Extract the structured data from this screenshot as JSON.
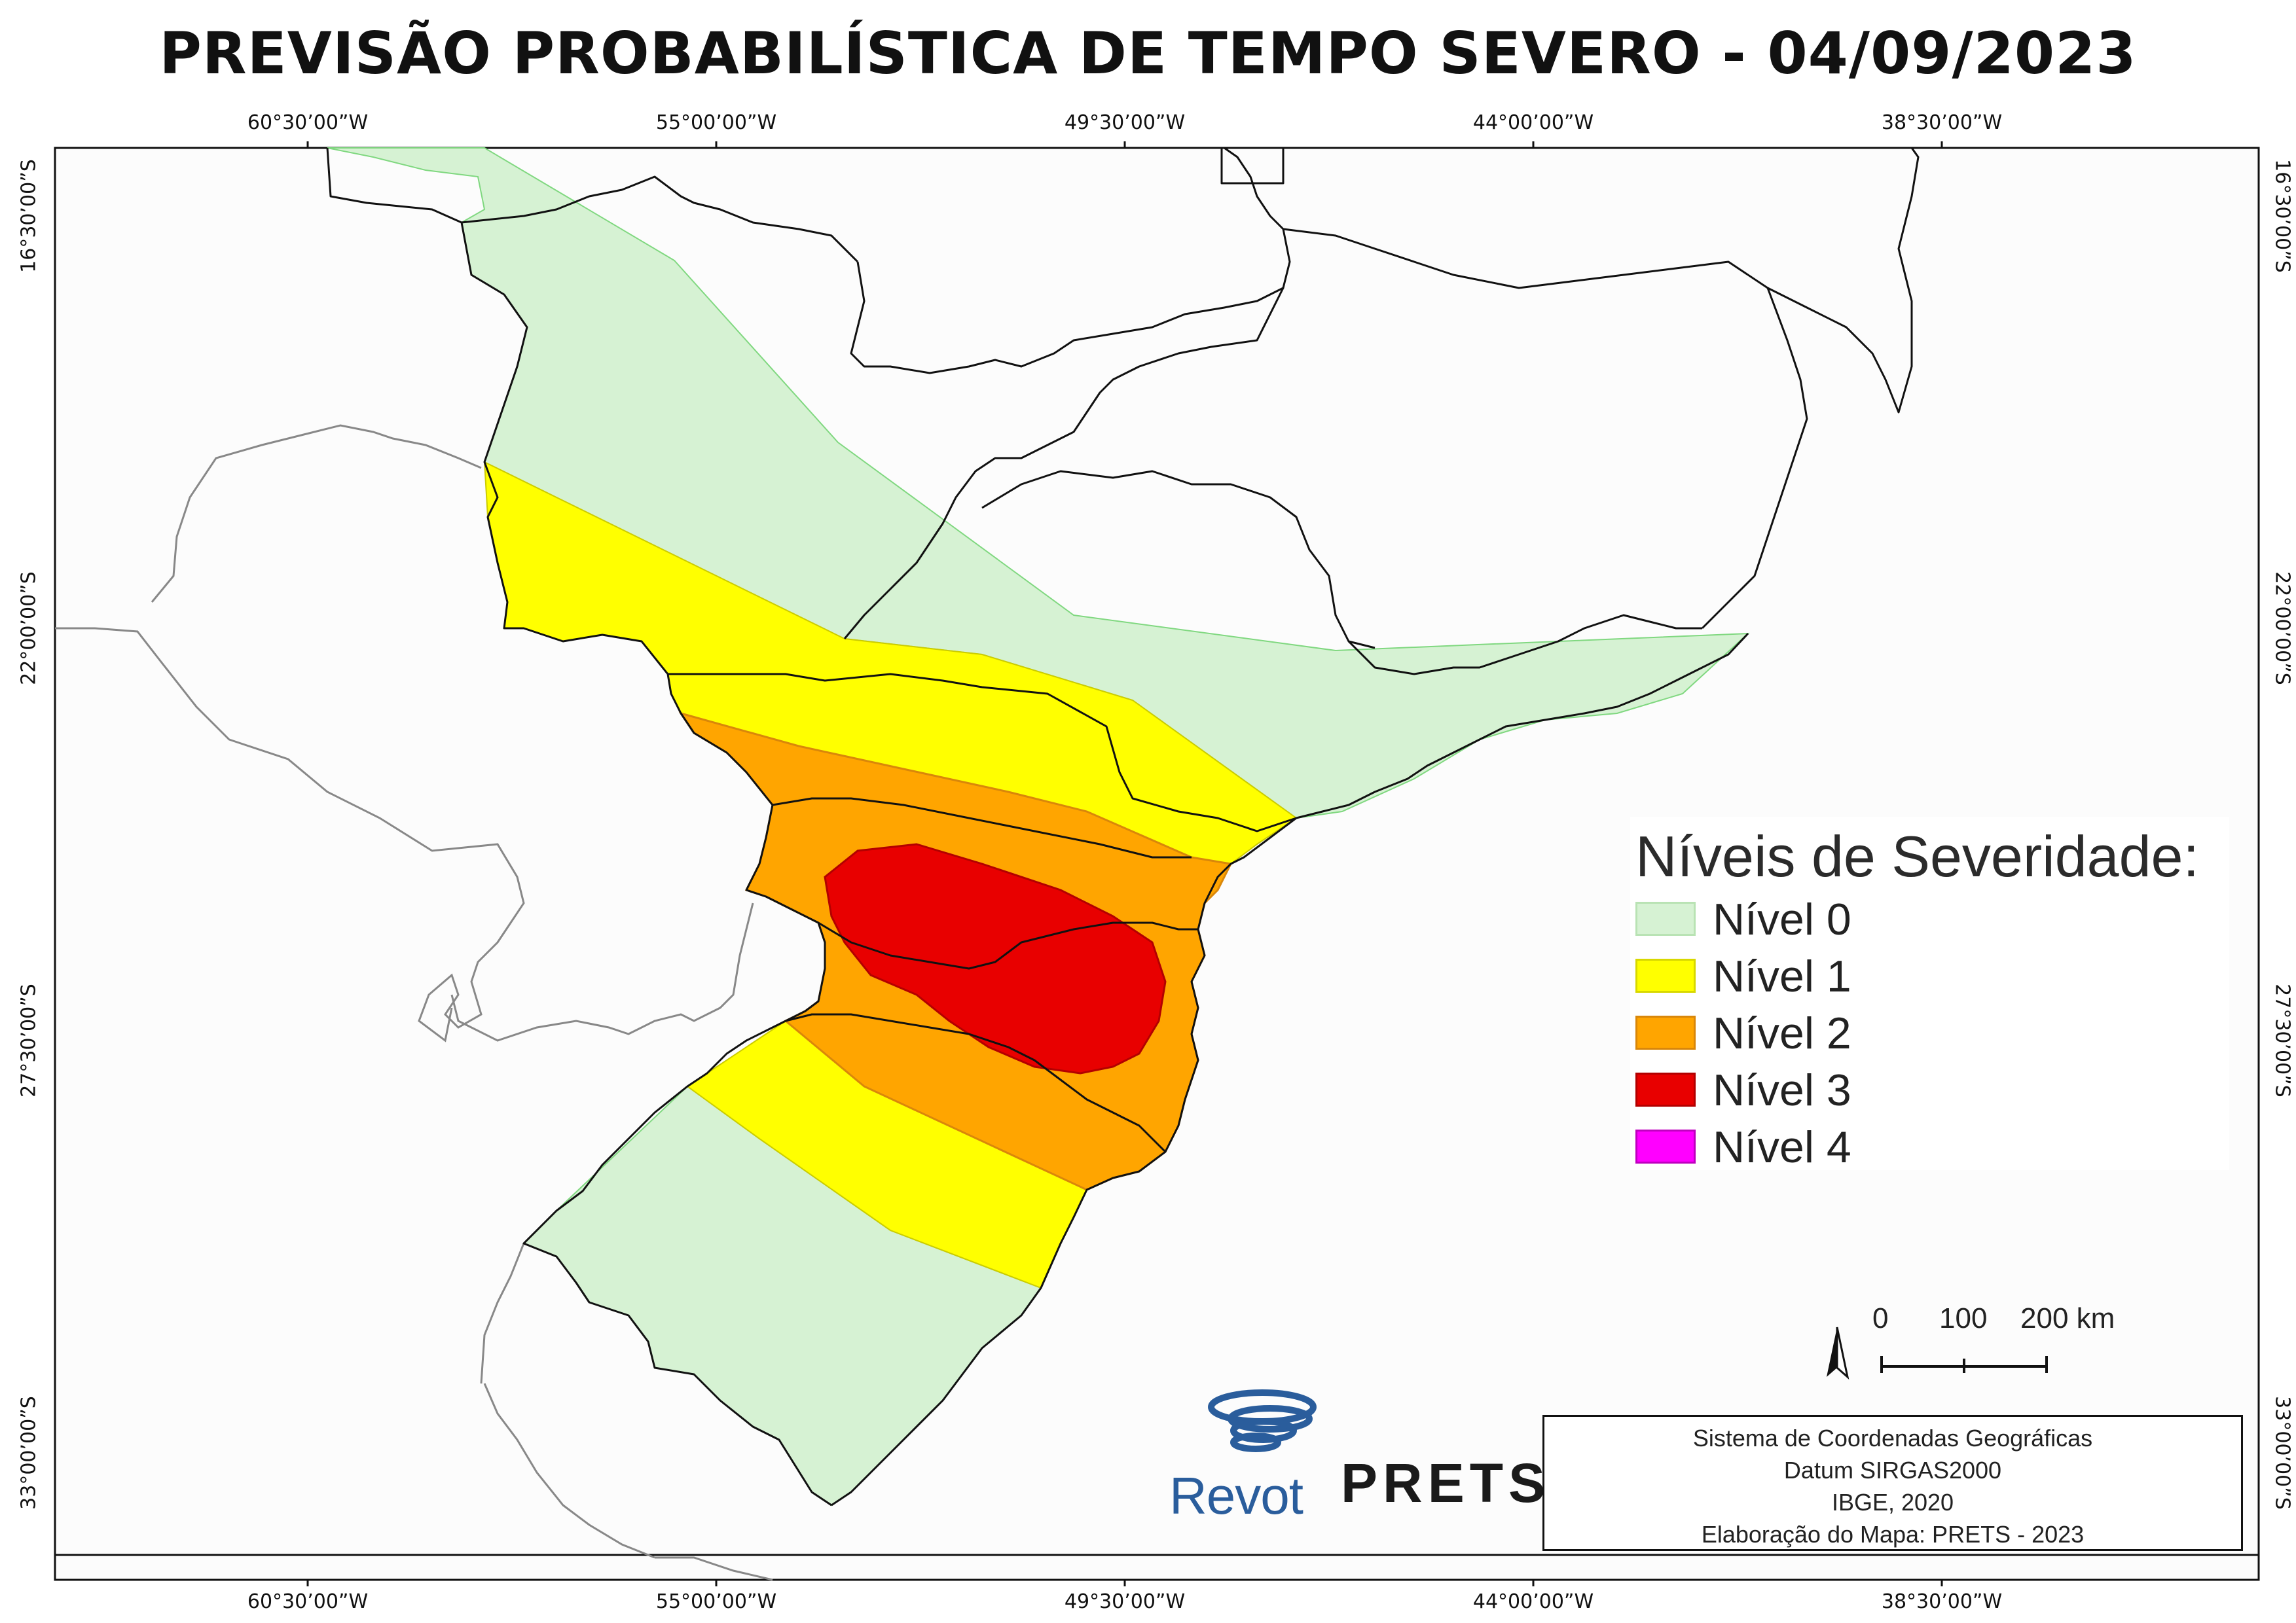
{
  "title": "PREVISÃO PROBABILÍSTICA DE TEMPO SEVERO - 04/09/2023",
  "longitude_labels": [
    "60°30’00”W",
    "55°00’00”W",
    "49°30’00”W",
    "44°00’00”W",
    "38°30’00”W"
  ],
  "latitude_labels": [
    "16°30’00”S",
    "22°00’00”S",
    "27°30’00”S",
    "33°00’00”S"
  ],
  "legend": {
    "title": "Níveis de Severidade:",
    "items": [
      {
        "label": "Nível 0",
        "fill": "#d6f2d3",
        "border": "#b9e3b4"
      },
      {
        "label": "Nível 1",
        "fill": "#ffff00",
        "border": "#d8d800"
      },
      {
        "label": "Nível 2",
        "fill": "#ffa500",
        "border": "#d9870a"
      },
      {
        "label": "Nível 3",
        "fill": "#e80000",
        "border": "#b30000"
      },
      {
        "label": "Nível 4",
        "fill": "#ff00ff",
        "border": "#c000c0"
      }
    ]
  },
  "scale_bar": {
    "labels": [
      "0",
      "100",
      "200 km"
    ]
  },
  "info_box": {
    "lines": [
      "Sistema de Coordenadas Geográficas",
      "Datum SIRGAS2000",
      "IBGE, 2020",
      "Elaboração do Mapa: PRETS - 2023"
    ]
  },
  "logos": {
    "revot": "Revot",
    "prets": "PRETS"
  },
  "colors": {
    "level0": "#d6f2d3",
    "level1": "#ffff00",
    "level2": "#ffa500",
    "level3": "#e80000",
    "level4": "#ff00ff",
    "map_background": "#fcfcfc",
    "land_border": "#111111",
    "neighbor_border": "#888888",
    "revot_blue": "#2a5d9c"
  }
}
